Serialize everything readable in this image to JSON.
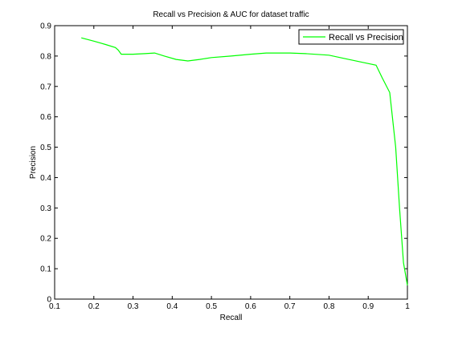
{
  "chart_data": {
    "type": "line",
    "title": "Recall vs Precision & AUC for dataset traffic",
    "xlabel": "Recall",
    "ylabel": "Precision",
    "xlim": [
      0.1,
      1.0
    ],
    "ylim": [
      0,
      0.9
    ],
    "xticks": [
      "0.1",
      "0.2",
      "0.3",
      "0.4",
      "0.5",
      "0.6",
      "0.7",
      "0.8",
      "0.9",
      "1"
    ],
    "yticks": [
      "0",
      "0.1",
      "0.2",
      "0.3",
      "0.4",
      "0.5",
      "0.6",
      "0.7",
      "0.8",
      "0.9"
    ],
    "grid": false,
    "legend_position": "top-right",
    "series": [
      {
        "name": "Recall vs Precision",
        "color": "#00ff00",
        "x": [
          0.168,
          0.2,
          0.23,
          0.255,
          0.262,
          0.27,
          0.3,
          0.33,
          0.355,
          0.38,
          0.41,
          0.44,
          0.47,
          0.5,
          0.55,
          0.6,
          0.64,
          0.7,
          0.74,
          0.8,
          0.85,
          0.89,
          0.92,
          0.935,
          0.955,
          0.97,
          0.98,
          0.99,
          1.0
        ],
        "y": [
          0.86,
          0.849,
          0.838,
          0.828,
          0.82,
          0.806,
          0.806,
          0.808,
          0.81,
          0.8,
          0.789,
          0.784,
          0.789,
          0.795,
          0.8,
          0.806,
          0.81,
          0.81,
          0.808,
          0.803,
          0.789,
          0.778,
          0.77,
          0.73,
          0.68,
          0.5,
          0.3,
          0.12,
          0.045
        ]
      }
    ]
  }
}
